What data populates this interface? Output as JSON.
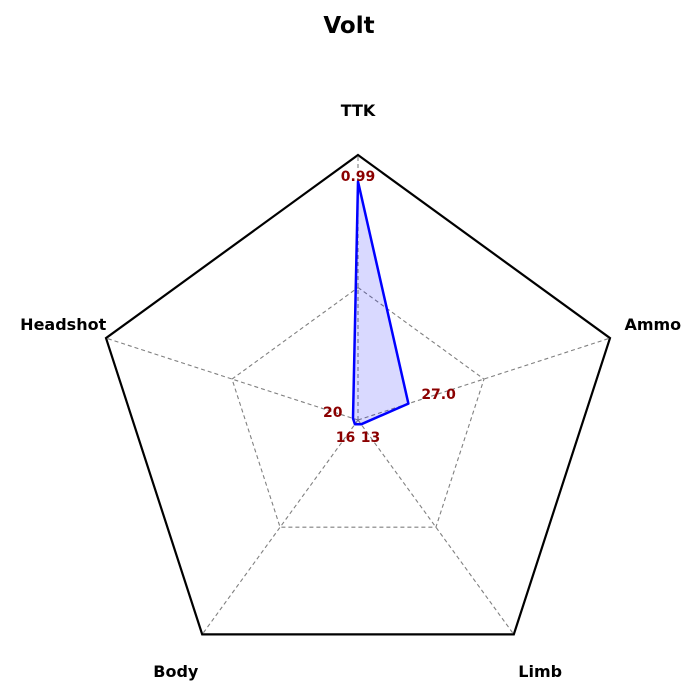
{
  "chart_data": {
    "type": "radar",
    "title": "Volt",
    "axes": [
      "TTK",
      "Ammo",
      "Limb",
      "Body",
      "Headshot"
    ],
    "series": [
      {
        "values": [
          0.9,
          0.2,
          0.02,
          0.02,
          0.02
        ],
        "value_labels": [
          "0.99",
          "27.0",
          "13",
          "16",
          "20"
        ]
      }
    ],
    "range": [
      0,
      1
    ],
    "grid_levels": [
      0.5
    ],
    "colors": {
      "series_line": "#0000ff",
      "series_fill": "#0000ff",
      "outline": "#000000",
      "grid": "#808080",
      "value_label": "#8b0000"
    }
  }
}
